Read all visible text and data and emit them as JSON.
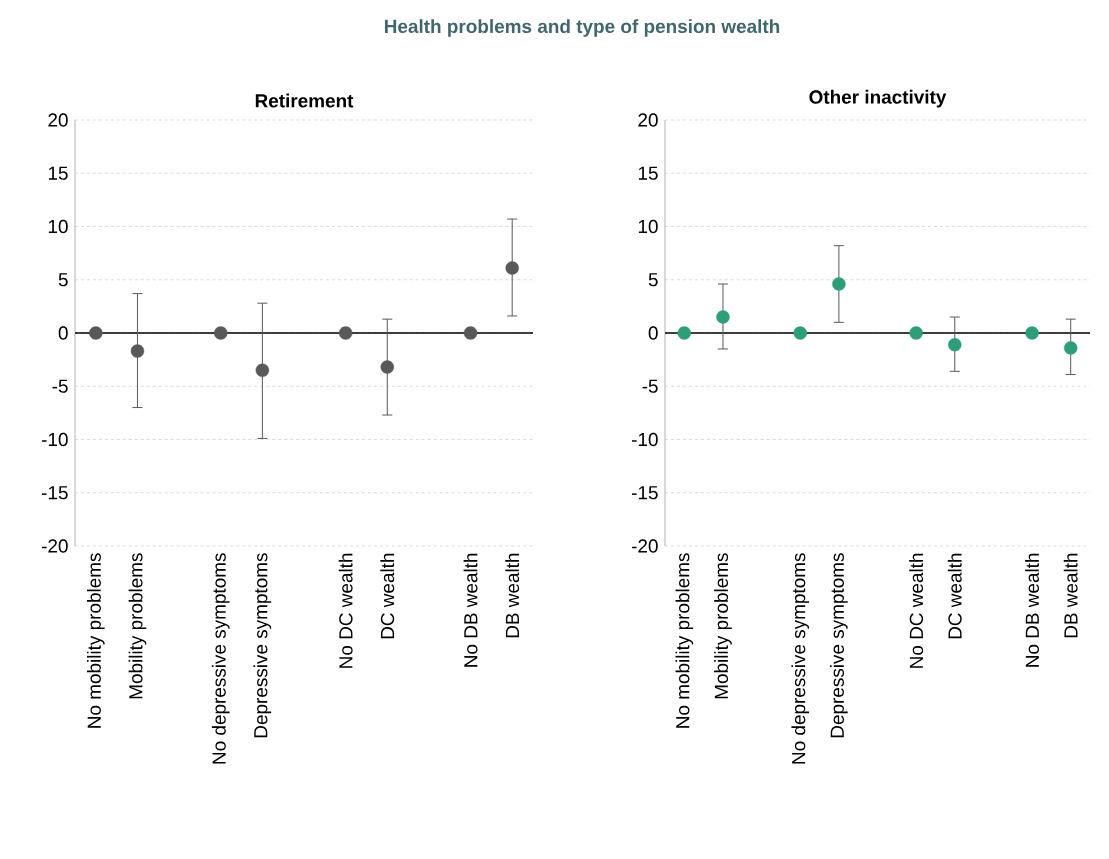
{
  "chart_data": [
    {
      "type": "scatter",
      "title": "Retirement",
      "annotations": [
        "Health problems and type of pension wealth"
      ],
      "categories": [
        "No mobility problems",
        "Mobility problems",
        null,
        "No depressive symptoms",
        "Depressive symptoms",
        null,
        "No DC wealth",
        "DC wealth",
        null,
        "No DB wealth",
        "DB wealth"
      ],
      "values": [
        0,
        -1.7,
        null,
        0,
        -3.5,
        null,
        0,
        -3.2,
        null,
        0,
        6.1
      ],
      "errors": [
        null,
        [
          -7.0,
          3.7
        ],
        null,
        null,
        [
          -9.9,
          2.8
        ],
        null,
        null,
        [
          -7.7,
          1.3
        ],
        null,
        null,
        [
          1.6,
          10.7
        ]
      ],
      "color": "#595959",
      "marker": "circle",
      "grid": "y",
      "ylim": [
        -20,
        20
      ],
      "yticks": [
        -20,
        -15,
        -10,
        -5,
        0,
        5,
        10,
        15,
        20
      ],
      "ref_lines": [
        {
          "axis": "y",
          "value": 0,
          "color": "#000000"
        }
      ]
    },
    {
      "type": "scatter",
      "title": "Other inactivity",
      "categories": [
        "No mobility problems",
        "Mobility problems",
        null,
        "No depressive symptoms",
        "Depressive symptoms",
        null,
        "No DC wealth",
        "DC wealth",
        null,
        "No DB wealth",
        "DB wealth"
      ],
      "values": [
        0,
        1.5,
        null,
        0,
        4.6,
        null,
        0,
        -1.1,
        null,
        0,
        -1.4
      ],
      "errors": [
        null,
        [
          -1.5,
          4.6
        ],
        null,
        null,
        [
          1.0,
          8.2
        ],
        null,
        null,
        [
          -3.6,
          1.5
        ],
        null,
        null,
        [
          -3.9,
          1.3
        ]
      ],
      "color": "#2e9e7a",
      "marker": "circle",
      "grid": "y",
      "ylim": [
        -20,
        20
      ],
      "yticks": [
        -20,
        -15,
        -10,
        -5,
        0,
        5,
        10,
        15,
        20
      ],
      "ref_lines": [
        {
          "axis": "y",
          "value": 0,
          "color": "#000000"
        }
      ]
    }
  ]
}
